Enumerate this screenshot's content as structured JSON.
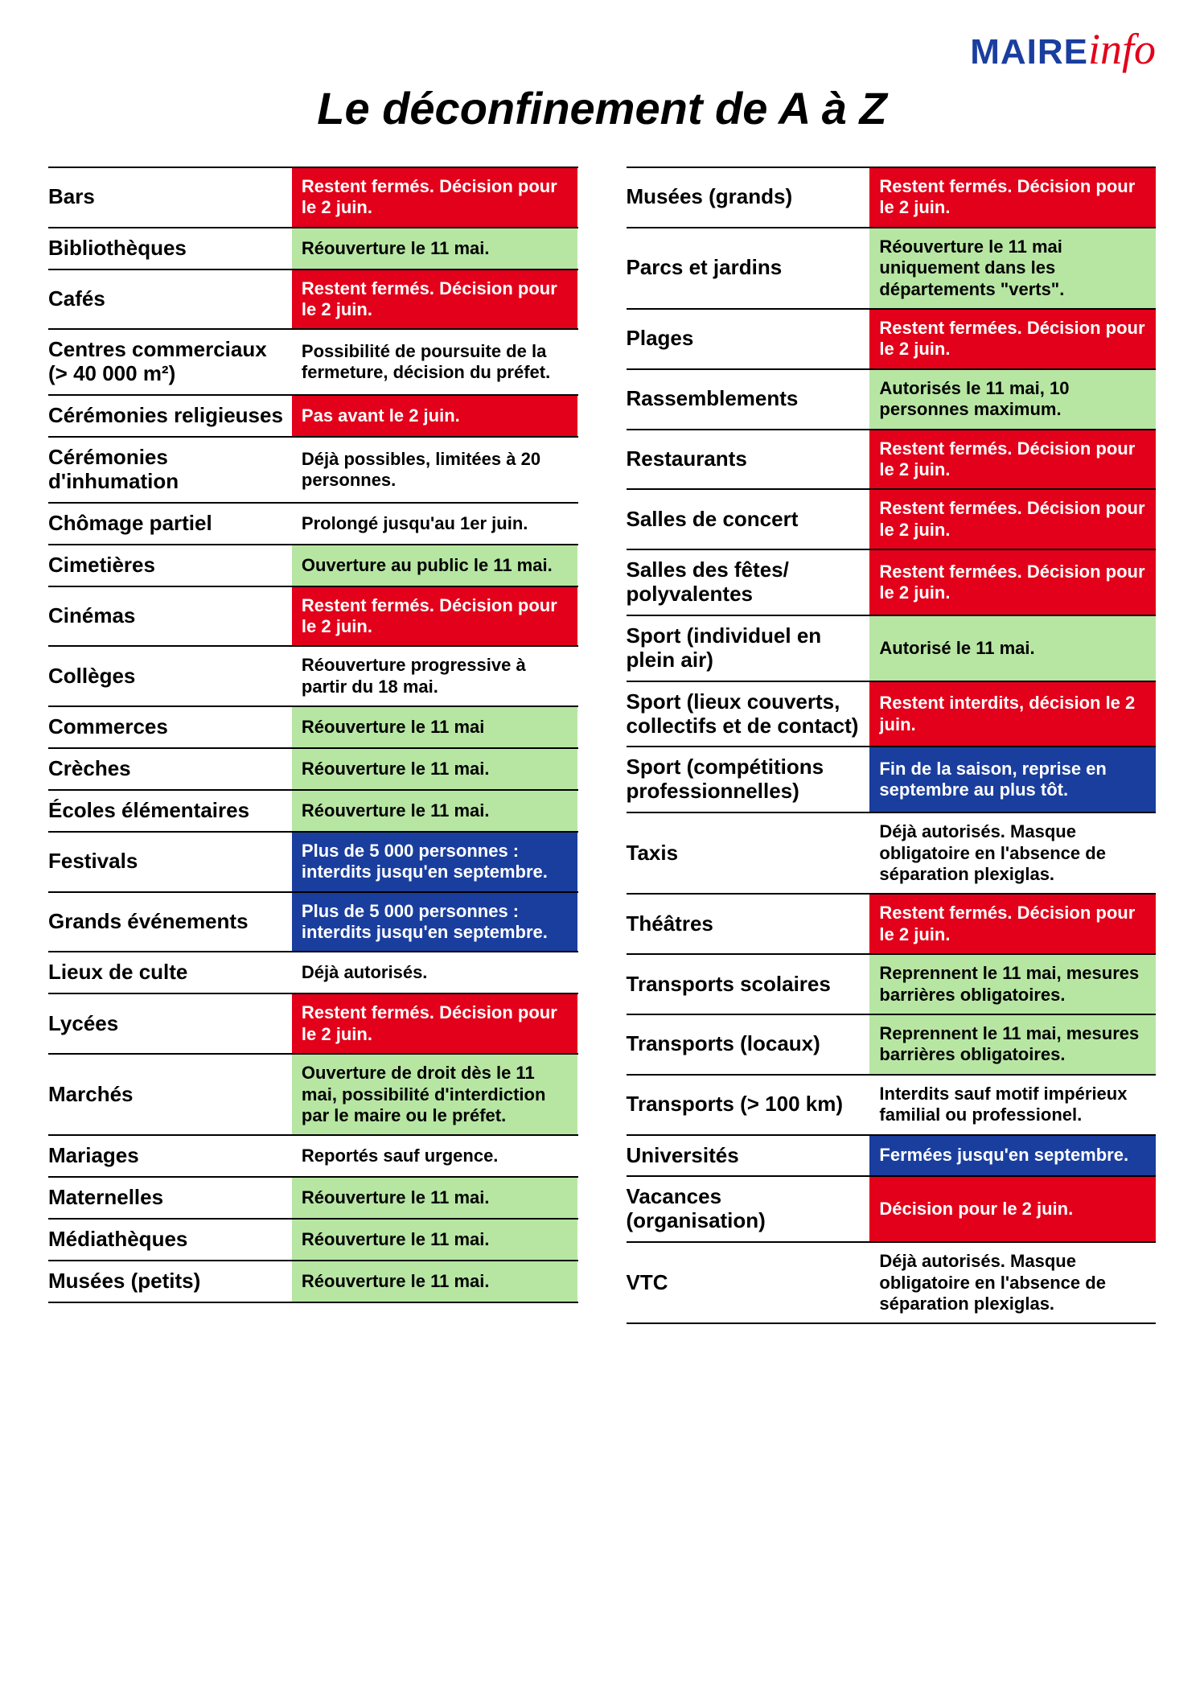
{
  "logo": {
    "part1": "MAIRE",
    "part2": "info"
  },
  "title": "Le déconfinement de A à Z",
  "colors": {
    "red_bg": "#e2001a",
    "red_fg": "#ffffff",
    "green_bg": "#b7e6a3",
    "green_fg": "#000000",
    "blue_bg": "#1a3e9e",
    "blue_fg": "#ffffff",
    "white_bg": "#ffffff",
    "white_fg": "#000000"
  },
  "left": [
    {
      "label": "Bars",
      "status": "Restent fermés. Décision pour le 2 juin.",
      "color": "red"
    },
    {
      "label": "Bibliothèques",
      "status": "Réouverture le 11 mai.",
      "color": "green"
    },
    {
      "label": "Cafés",
      "status": "Restent fermés. Décision pour le 2 juin.",
      "color": "red"
    },
    {
      "label": "Centres commerciaux (> 40 000 m²)",
      "status": "Possibilité de poursuite de la fermeture, décision du préfet.",
      "color": "white"
    },
    {
      "label": "Cérémonies religieuses",
      "status": "Pas avant le 2 juin.",
      "color": "red"
    },
    {
      "label": "Cérémonies d'inhumation",
      "status": "Déjà possibles, limitées à 20 personnes.",
      "color": "white"
    },
    {
      "label": "Chômage partiel",
      "status": "Prolongé jusqu'au 1er juin.",
      "color": "white"
    },
    {
      "label": "Cimetières",
      "status": "Ouverture au public le 11 mai.",
      "color": "green"
    },
    {
      "label": "Cinémas",
      "status": "Restent fermés. Décision pour le 2 juin.",
      "color": "red"
    },
    {
      "label": "Collèges",
      "status": "Réouverture progressive à partir du 18 mai.",
      "color": "white"
    },
    {
      "label": "Commerces",
      "status": "Réouverture le 11 mai",
      "color": "green"
    },
    {
      "label": "Crèches",
      "status": "Réouverture le 11 mai.",
      "color": "green"
    },
    {
      "label": "Écoles élémentaires",
      "status": "Réouverture le 11 mai.",
      "color": "green"
    },
    {
      "label": "Festivals",
      "status": "Plus de 5 000 personnes : interdits jusqu'en septembre.",
      "color": "blue"
    },
    {
      "label": "Grands événements",
      "status": "Plus de 5 000 personnes : interdits jusqu'en septembre.",
      "color": "blue"
    },
    {
      "label": "Lieux de culte",
      "status": "Déjà autorisés.",
      "color": "white"
    },
    {
      "label": "Lycées",
      "status": "Restent fermés. Décision pour le 2 juin.",
      "color": "red"
    },
    {
      "label": "Marchés",
      "status": "Ouverture de droit dès le 11 mai, possibilité d'interdiction par le maire ou le préfet.",
      "color": "green"
    },
    {
      "label": "Mariages",
      "status": "Reportés sauf urgence.",
      "color": "white"
    },
    {
      "label": "Maternelles",
      "status": "Réouverture le 11 mai.",
      "color": "green"
    },
    {
      "label": "Médiathèques",
      "status": "Réouverture le 11 mai.",
      "color": "green"
    },
    {
      "label": "Musées (petits)",
      "status": "Réouverture le 11 mai.",
      "color": "green"
    }
  ],
  "right": [
    {
      "label": "Musées (grands)",
      "status": "Restent fermés. Décision pour le 2 juin.",
      "color": "red"
    },
    {
      "label": "Parcs et jardins",
      "status": "Réouverture le 11 mai uniquement dans les départements \"verts\".",
      "color": "green"
    },
    {
      "label": "Plages",
      "status": "Restent fermées. Décision pour le 2 juin.",
      "color": "red"
    },
    {
      "label": "Rassemblements",
      "status": "Autorisés le 11 mai, 10 personnes maximum.",
      "color": "green"
    },
    {
      "label": "Restaurants",
      "status": "Restent fermés. Décision pour le 2 juin.",
      "color": "red"
    },
    {
      "label": "Salles de concert",
      "status": "Restent fermées. Décision pour le 2 juin.",
      "color": "red"
    },
    {
      "label": "Salles des fêtes/ polyvalentes",
      "status": "Restent fermées. Décision pour le 2 juin.",
      "color": "red"
    },
    {
      "label": "Sport (individuel en plein air)",
      "status": "Autorisé le 11 mai.",
      "color": "green"
    },
    {
      "label": "Sport (lieux couverts, collectifs et de contact)",
      "status": "Restent interdits, décision le 2 juin.",
      "color": "red"
    },
    {
      "label": "Sport (compétitions professionnelles)",
      "status": "Fin de la saison, reprise en septembre au plus tôt.",
      "color": "blue"
    },
    {
      "label": "Taxis",
      "status": "Déjà autorisés. Masque obligatoire en l'absence de séparation plexiglas.",
      "color": "white"
    },
    {
      "label": "Théâtres",
      "status": "Restent fermés. Décision pour le 2 juin.",
      "color": "red"
    },
    {
      "label": "Transports scolaires",
      "status": "Reprennent le 11 mai, mesures barrières obligatoires.",
      "color": "green"
    },
    {
      "label": "Transports (locaux)",
      "status": "Reprennent le 11 mai, mesures barrières obligatoires.",
      "color": "green"
    },
    {
      "label": "Transports (> 100 km)",
      "status": "Interdits sauf motif impérieux familial ou professionel.",
      "color": "white"
    },
    {
      "label": "Universités",
      "status": "Fermées jusqu'en septembre.",
      "color": "blue"
    },
    {
      "label": "Vacances (organisation)",
      "status": "Décision pour le 2 juin.",
      "color": "red"
    },
    {
      "label": "VTC",
      "status": "Déjà autorisés. Masque obligatoire en l'absence de séparation plexiglas.",
      "color": "white"
    }
  ]
}
